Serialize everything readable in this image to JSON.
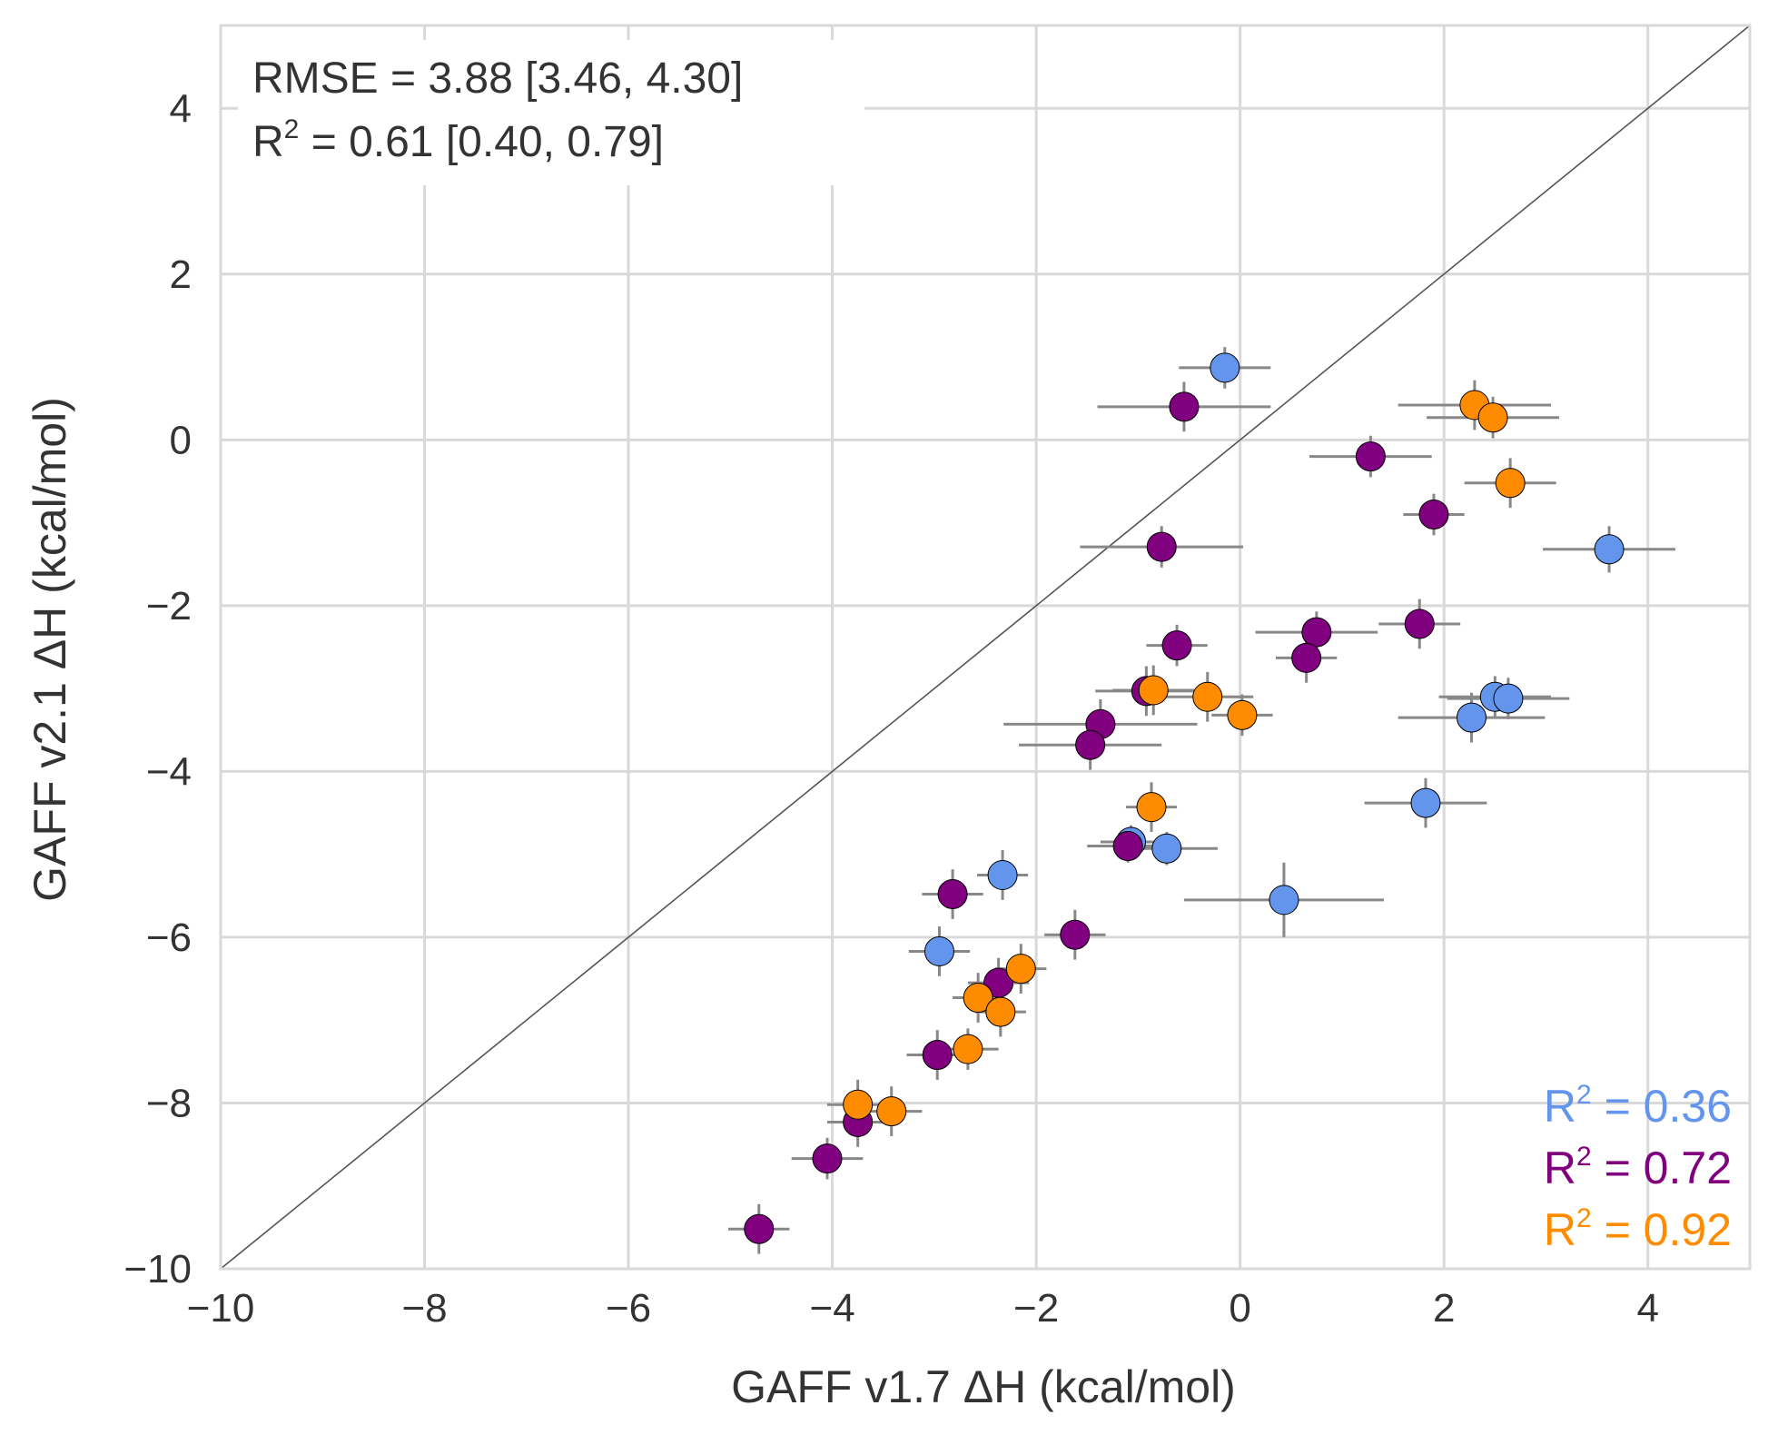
{
  "chart_data": {
    "type": "scatter",
    "xlabel": "GAFF v1.7 ΔH (kcal/mol)",
    "ylabel": "GAFF v2.1 ΔH (kcal/mol)",
    "xlim": [
      -10,
      5
    ],
    "ylim": [
      -10,
      5
    ],
    "xticks": [
      -10,
      -8,
      -6,
      -4,
      -2,
      0,
      2,
      4
    ],
    "yticks": [
      -10,
      -8,
      -6,
      -4,
      -2,
      0,
      2,
      4
    ],
    "tick_labels": [
      "−10",
      "−8",
      "−6",
      "−4",
      "−2",
      "0",
      "2",
      "4"
    ],
    "grid": true,
    "diagonal": true,
    "stats": {
      "rmse_label": "RMSE = 3.88 [3.46, 4.30]",
      "r2_prefix": "R",
      "r2_sup": "2",
      "r2_rest": " = 0.61 [0.40, 0.79]"
    },
    "colors": {
      "blue": "#6495ED",
      "purple": "#800080",
      "orange": "#FF8C00",
      "error": "#888888",
      "grid": "#d9d9d9",
      "diagonal": "#555555"
    },
    "series": [
      {
        "color": "#6495ED",
        "r2_text": " = 0.36",
        "points": [
          {
            "x": -0.15,
            "y": 0.87,
            "xerr": 0.45,
            "yerr": 0.25
          },
          {
            "x": 3.62,
            "y": -1.32,
            "xerr": 0.65,
            "yerr": 0.28
          },
          {
            "x": 2.27,
            "y": -3.35,
            "xerr": 0.72,
            "yerr": 0.3
          },
          {
            "x": 2.5,
            "y": -3.1,
            "xerr": 0.55,
            "yerr": 0.25
          },
          {
            "x": 2.63,
            "y": -3.12,
            "xerr": 0.6,
            "yerr": 0.25
          },
          {
            "x": 1.82,
            "y": -4.38,
            "xerr": 0.6,
            "yerr": 0.3
          },
          {
            "x": -1.07,
            "y": -4.85,
            "xerr": 0.3,
            "yerr": 0.2
          },
          {
            "x": -0.72,
            "y": -4.93,
            "xerr": 0.5,
            "yerr": 0.2
          },
          {
            "x": 0.43,
            "y": -5.55,
            "xerr": 0.98,
            "yerr": 0.45
          },
          {
            "x": -2.33,
            "y": -5.25,
            "xerr": 0.25,
            "yerr": 0.3
          },
          {
            "x": -2.95,
            "y": -6.17,
            "xerr": 0.3,
            "yerr": 0.3
          }
        ]
      },
      {
        "color": "#800080",
        "r2_text": " = 0.72",
        "points": [
          {
            "x": -0.55,
            "y": 0.4,
            "xerr": 0.85,
            "yerr": 0.3
          },
          {
            "x": 1.28,
            "y": -0.2,
            "xerr": 0.6,
            "yerr": 0.25
          },
          {
            "x": 1.9,
            "y": -0.9,
            "xerr": 0.3,
            "yerr": 0.25
          },
          {
            "x": -0.77,
            "y": -1.29,
            "xerr": 0.8,
            "yerr": 0.25
          },
          {
            "x": -0.62,
            "y": -2.48,
            "xerr": 0.3,
            "yerr": 0.25
          },
          {
            "x": 0.75,
            "y": -2.32,
            "xerr": 0.6,
            "yerr": 0.25
          },
          {
            "x": 0.65,
            "y": -2.63,
            "xerr": 0.3,
            "yerr": 0.3
          },
          {
            "x": 1.76,
            "y": -2.22,
            "xerr": 0.4,
            "yerr": 0.3
          },
          {
            "x": -0.92,
            "y": -3.03,
            "xerr": 0.5,
            "yerr": 0.3
          },
          {
            "x": -1.37,
            "y": -3.43,
            "xerr": 0.95,
            "yerr": 0.3
          },
          {
            "x": -1.47,
            "y": -3.68,
            "xerr": 0.7,
            "yerr": 0.3
          },
          {
            "x": -1.1,
            "y": -4.9,
            "xerr": 0.4,
            "yerr": 0.2
          },
          {
            "x": -1.62,
            "y": -5.97,
            "xerr": 0.3,
            "yerr": 0.3
          },
          {
            "x": -2.82,
            "y": -5.48,
            "xerr": 0.3,
            "yerr": 0.3
          },
          {
            "x": -2.37,
            "y": -6.55,
            "xerr": 0.3,
            "yerr": 0.3
          },
          {
            "x": -2.97,
            "y": -7.42,
            "xerr": 0.3,
            "yerr": 0.3
          },
          {
            "x": -3.75,
            "y": -8.23,
            "xerr": 0.3,
            "yerr": 0.3
          },
          {
            "x": -4.05,
            "y": -8.67,
            "xerr": 0.35,
            "yerr": 0.25
          },
          {
            "x": -4.72,
            "y": -9.52,
            "xerr": 0.3,
            "yerr": 0.3
          }
        ]
      },
      {
        "color": "#FF8C00",
        "r2_text": " = 0.92",
        "points": [
          {
            "x": 2.3,
            "y": 0.42,
            "xerr": 0.75,
            "yerr": 0.3
          },
          {
            "x": 2.48,
            "y": 0.27,
            "xerr": 0.65,
            "yerr": 0.25
          },
          {
            "x": 2.65,
            "y": -0.52,
            "xerr": 0.45,
            "yerr": 0.3
          },
          {
            "x": -0.85,
            "y": -3.02,
            "xerr": 0.4,
            "yerr": 0.3
          },
          {
            "x": -0.32,
            "y": -3.1,
            "xerr": 0.45,
            "yerr": 0.3
          },
          {
            "x": 0.02,
            "y": -3.32,
            "xerr": 0.3,
            "yerr": 0.25
          },
          {
            "x": -0.87,
            "y": -4.43,
            "xerr": 0.25,
            "yerr": 0.3
          },
          {
            "x": -2.15,
            "y": -6.38,
            "xerr": 0.25,
            "yerr": 0.3
          },
          {
            "x": -2.57,
            "y": -6.73,
            "xerr": 0.25,
            "yerr": 0.3
          },
          {
            "x": -2.35,
            "y": -6.9,
            "xerr": 0.25,
            "yerr": 0.3
          },
          {
            "x": -2.67,
            "y": -7.35,
            "xerr": 0.3,
            "yerr": 0.25
          },
          {
            "x": -3.75,
            "y": -8.02,
            "xerr": 0.3,
            "yerr": 0.3
          },
          {
            "x": -3.42,
            "y": -8.1,
            "xerr": 0.3,
            "yerr": 0.3
          }
        ]
      }
    ]
  }
}
